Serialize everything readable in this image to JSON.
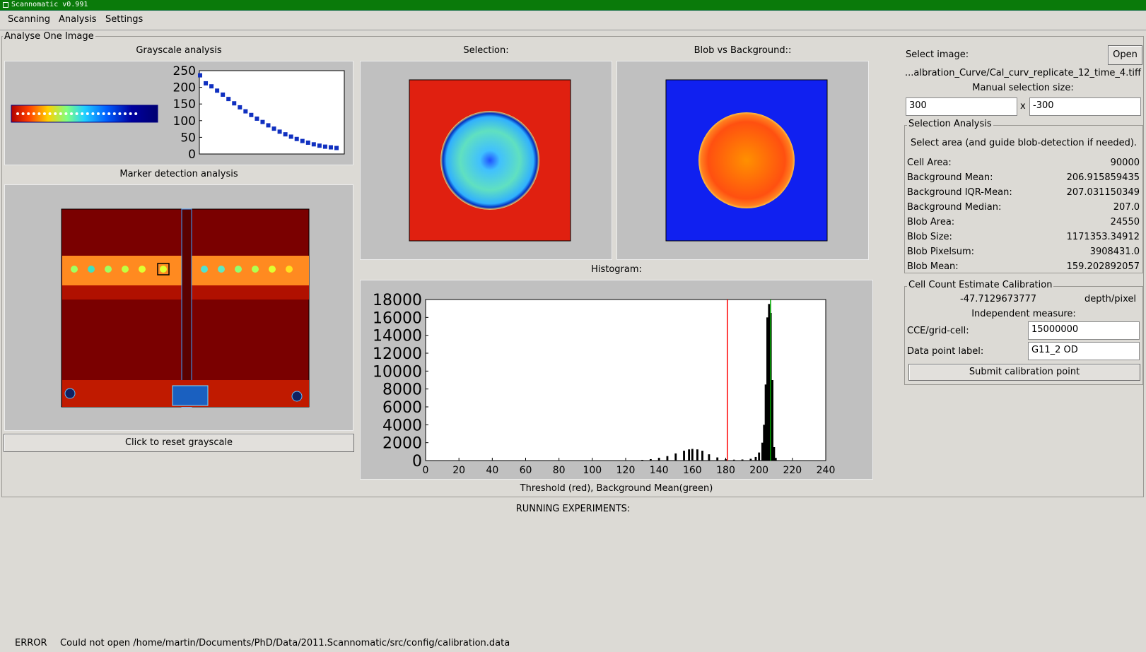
{
  "window": {
    "title": "Scannomatic v0.991"
  },
  "menu": [
    "Scanning",
    "Analysis",
    "Settings"
  ],
  "panel": {
    "title": "Analyse One Image"
  },
  "grayscale": {
    "title": "Grayscale analysis",
    "plot_ticks": [
      "250",
      "200",
      "150",
      "100",
      "50",
      "0"
    ],
    "reset_button": "Click to reset grayscale"
  },
  "marker": {
    "title": "Marker detection analysis"
  },
  "selection": {
    "title": "Selection:"
  },
  "blob": {
    "title": "Blob vs Background::"
  },
  "histogram": {
    "title": "Histogram:",
    "caption": "Threshold (red), Background Mean(green)",
    "colors": {
      "threshold": "#ff0000",
      "background_mean": "#00aa00"
    }
  },
  "chart_data": [
    {
      "type": "scatter",
      "title": "",
      "ylim": [
        0,
        250
      ],
      "yticks": [
        0,
        50,
        100,
        150,
        200,
        250
      ],
      "values": [
        236,
        212,
        203,
        190,
        178,
        165,
        152,
        140,
        128,
        117,
        106,
        96,
        86,
        76,
        67,
        59,
        52,
        45,
        39,
        34,
        29,
        25,
        22,
        20,
        18
      ]
    },
    {
      "type": "bar",
      "title": "",
      "xlabel": "Threshold (red), Background Mean(green)",
      "xlim": [
        0,
        240
      ],
      "ylim": [
        0,
        18000
      ],
      "xticks": [
        0,
        20,
        40,
        60,
        80,
        100,
        120,
        140,
        160,
        180,
        200,
        220,
        240
      ],
      "yticks": [
        0,
        2000,
        4000,
        6000,
        8000,
        10000,
        12000,
        14000,
        16000,
        18000
      ],
      "threshold": 181,
      "background_mean": 206.9,
      "bins": [
        [
          120,
          20
        ],
        [
          125,
          40
        ],
        [
          130,
          80
        ],
        [
          135,
          160
        ],
        [
          140,
          300
        ],
        [
          145,
          500
        ],
        [
          150,
          800
        ],
        [
          155,
          1100
        ],
        [
          158,
          1250
        ],
        [
          160,
          1300
        ],
        [
          163,
          1250
        ],
        [
          166,
          1100
        ],
        [
          170,
          700
        ],
        [
          175,
          350
        ],
        [
          180,
          150
        ],
        [
          185,
          100
        ],
        [
          190,
          120
        ],
        [
          195,
          200
        ],
        [
          198,
          400
        ],
        [
          200,
          900
        ],
        [
          202,
          2000
        ],
        [
          203,
          4000
        ],
        [
          204,
          8500
        ],
        [
          205,
          16000
        ],
        [
          206,
          17500
        ],
        [
          207,
          16500
        ],
        [
          208,
          9000
        ],
        [
          209,
          1500
        ],
        [
          210,
          300
        ]
      ]
    }
  ],
  "right": {
    "select_image_label": "Select image:",
    "open_button": "Open",
    "file_path": "...albration_Curve/Cal_curv_replicate_12_time_4.tiff",
    "manual_size_label": "Manual selection size:",
    "size_w": "300",
    "size_x": "x",
    "size_h": "-300",
    "selection_analysis": {
      "title": "Selection Analysis",
      "hint": "Select area (and guide blob-detection if needed).",
      "rows": [
        {
          "label": "Cell Area:",
          "value": "90000"
        },
        {
          "label": "Background Mean:",
          "value": "206.915859435"
        },
        {
          "label": "Background IQR-Mean:",
          "value": "207.031150349"
        },
        {
          "label": "Background Median:",
          "value": "207.0"
        },
        {
          "label": "Blob Area:",
          "value": "24550"
        },
        {
          "label": "Blob Size:",
          "value": "1171353.34912"
        },
        {
          "label": "Blob Pixelsum:",
          "value": "3908431.0"
        },
        {
          "label": "Blob Mean:",
          "value": "159.202892057"
        }
      ]
    },
    "cce": {
      "title": "Cell Count Estimate Calibration",
      "estimate": "-47.7129673777",
      "unit": "depth/pixel",
      "independent": "Independent measure:",
      "cce_label": "CCE/grid-cell:",
      "cce_value": "15000000",
      "label_label": "Data point label:",
      "label_value": "G11_2 OD",
      "submit": "Submit calibration point"
    }
  },
  "running": {
    "title": "RUNNING EXPERIMENTS:"
  },
  "status": {
    "level": "ERROR",
    "message": "Could not open /home/martin/Documents/PhD/Data/2011.Scannomatic/src/config/calibration.data"
  }
}
